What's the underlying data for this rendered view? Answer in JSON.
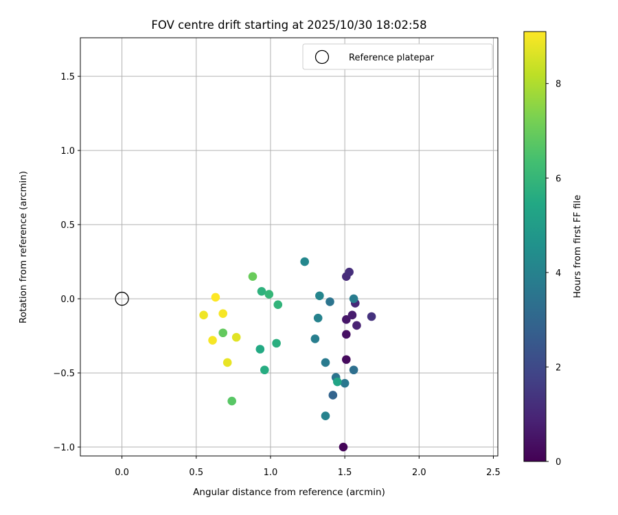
{
  "chart_data": {
    "type": "scatter",
    "title": "FOV centre drift starting at 2025/10/30 18:02:58",
    "xlabel": "Angular distance from reference (arcmin)",
    "ylabel": "Rotation from reference (arcmin)",
    "xlim": [
      -0.28,
      2.53
    ],
    "ylim": [
      -1.06,
      1.76
    ],
    "xticks": [
      0.0,
      0.5,
      1.0,
      1.5,
      2.0,
      2.5
    ],
    "yticks": [
      -1.0,
      -0.5,
      0.0,
      0.5,
      1.0,
      1.5
    ],
    "xtick_labels": [
      "0.0",
      "0.5",
      "1.0",
      "1.5",
      "2.0",
      "2.5"
    ],
    "ytick_labels": [
      "−1.0",
      "−0.5",
      "0.0",
      "0.5",
      "1.0",
      "1.5"
    ],
    "grid": true,
    "legend": {
      "position": "top-right",
      "label": "Reference platepar"
    },
    "reference_point": {
      "x": 0.0,
      "y": 0.0
    },
    "colorbar": {
      "label": "Hours from first FF file",
      "colormap": "viridis",
      "range": [
        0,
        9.1
      ],
      "ticks": [
        0,
        2,
        4,
        6,
        8
      ],
      "tick_labels": [
        "0",
        "2",
        "4",
        "6",
        "8"
      ]
    },
    "points": [
      {
        "x": 1.49,
        "y": -1.0,
        "hours": 0.1
      },
      {
        "x": 1.51,
        "y": -0.41,
        "hours": 0.25
      },
      {
        "x": 1.51,
        "y": -0.24,
        "hours": 0.4
      },
      {
        "x": 1.51,
        "y": -0.14,
        "hours": 0.55
      },
      {
        "x": 1.55,
        "y": -0.11,
        "hours": 0.7
      },
      {
        "x": 1.58,
        "y": -0.18,
        "hours": 0.85
      },
      {
        "x": 1.57,
        "y": -0.03,
        "hours": 1.0
      },
      {
        "x": 1.51,
        "y": 0.15,
        "hours": 1.1
      },
      {
        "x": 1.53,
        "y": 0.18,
        "hours": 1.2
      },
      {
        "x": 1.68,
        "y": -0.12,
        "hours": 1.3
      },
      {
        "x": 1.42,
        "y": -0.65,
        "hours": 2.9
      },
      {
        "x": 1.56,
        "y": -0.48,
        "hours": 3.3
      },
      {
        "x": 1.44,
        "y": -0.53,
        "hours": 3.5
      },
      {
        "x": 1.5,
        "y": -0.57,
        "hours": 3.6
      },
      {
        "x": 1.4,
        "y": -0.02,
        "hours": 3.5
      },
      {
        "x": 1.56,
        "y": 0.0,
        "hours": 3.8
      },
      {
        "x": 1.37,
        "y": -0.79,
        "hours": 4.0
      },
      {
        "x": 1.37,
        "y": -0.43,
        "hours": 3.7
      },
      {
        "x": 1.3,
        "y": -0.27,
        "hours": 3.85
      },
      {
        "x": 1.32,
        "y": -0.13,
        "hours": 4.0
      },
      {
        "x": 1.33,
        "y": 0.02,
        "hours": 4.1
      },
      {
        "x": 1.23,
        "y": 0.25,
        "hours": 4.2
      },
      {
        "x": 1.45,
        "y": -0.56,
        "hours": 5.3
      },
      {
        "x": 0.93,
        "y": -0.34,
        "hours": 5.5
      },
      {
        "x": 0.96,
        "y": -0.48,
        "hours": 5.6
      },
      {
        "x": 1.04,
        "y": -0.3,
        "hours": 5.7
      },
      {
        "x": 0.94,
        "y": 0.05,
        "hours": 5.8
      },
      {
        "x": 1.05,
        "y": -0.04,
        "hours": 5.9
      },
      {
        "x": 0.99,
        "y": 0.03,
        "hours": 6.0
      },
      {
        "x": 0.74,
        "y": -0.69,
        "hours": 6.7
      },
      {
        "x": 0.68,
        "y": -0.23,
        "hours": 6.9
      },
      {
        "x": 0.88,
        "y": 0.15,
        "hours": 7.0
      },
      {
        "x": 0.77,
        "y": -0.26,
        "hours": 8.7
      },
      {
        "x": 0.71,
        "y": -0.43,
        "hours": 8.8
      },
      {
        "x": 0.55,
        "y": -0.11,
        "hours": 8.9
      },
      {
        "x": 0.61,
        "y": -0.28,
        "hours": 9.0
      },
      {
        "x": 0.68,
        "y": -0.1,
        "hours": 9.0
      },
      {
        "x": 0.63,
        "y": 0.01,
        "hours": 9.1
      }
    ]
  }
}
